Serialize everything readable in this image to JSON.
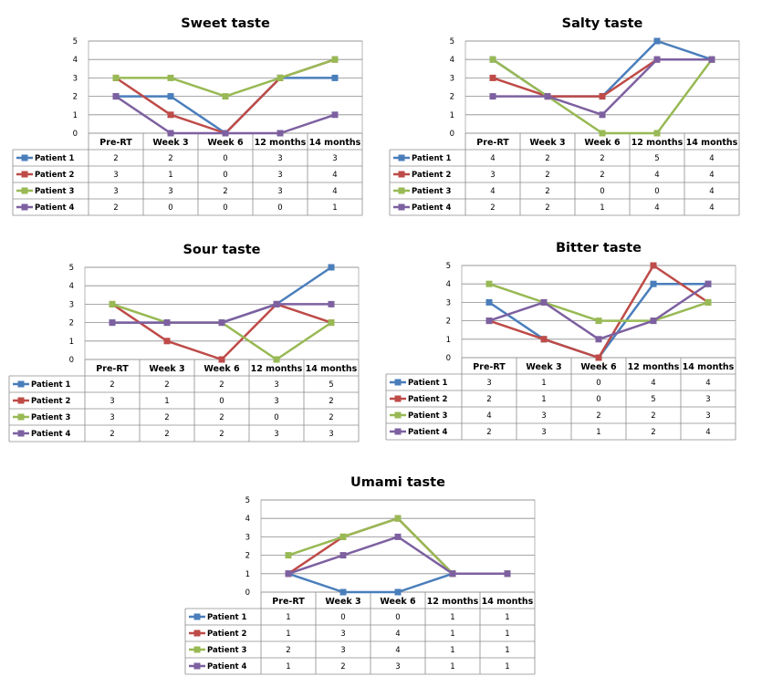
{
  "colors": {
    "Patient 1": "#4a7ebb",
    "Patient 2": "#be4b48",
    "Patient 3": "#98b954",
    "Patient 4": "#7d60a0"
  },
  "chart_data": [
    {
      "type": "line",
      "title": "Sweet taste",
      "categories": [
        "Pre-RT",
        "Week 3",
        "Week 6",
        "12 months",
        "14 months"
      ],
      "ylim": [
        0,
        5
      ],
      "yticks": [
        "0",
        "1",
        "2",
        "3",
        "4",
        "5"
      ],
      "grid": true,
      "legend": "data-table",
      "series": [
        {
          "name": "Patient 1",
          "values": [
            2,
            2,
            0,
            3,
            3
          ]
        },
        {
          "name": "Patient 2",
          "values": [
            3,
            1,
            0,
            3,
            4
          ]
        },
        {
          "name": "Patient 3",
          "values": [
            3,
            3,
            2,
            3,
            4
          ]
        },
        {
          "name": "Patient 4",
          "values": [
            2,
            0,
            0,
            0,
            1
          ]
        }
      ]
    },
    {
      "type": "line",
      "title": "Salty taste",
      "categories": [
        "Pre-RT",
        "Week 3",
        "Week 6",
        "12 months",
        "14 months"
      ],
      "ylim": [
        0,
        5
      ],
      "yticks": [
        "0",
        "1",
        "2",
        "3",
        "4",
        "5"
      ],
      "grid": true,
      "legend": "data-table",
      "series": [
        {
          "name": "Patient 1",
          "values": [
            4,
            2,
            2,
            5,
            4
          ]
        },
        {
          "name": "Patient 2",
          "values": [
            3,
            2,
            2,
            4,
            4
          ]
        },
        {
          "name": "Patient 3",
          "values": [
            4,
            2,
            0,
            0,
            4
          ]
        },
        {
          "name": "Patient 4",
          "values": [
            2,
            2,
            1,
            4,
            4
          ]
        }
      ]
    },
    {
      "type": "line",
      "title": "Sour taste",
      "categories": [
        "Pre-RT",
        "Week 3",
        "Week 6",
        "12 months",
        "14 months"
      ],
      "ylim": [
        0,
        5
      ],
      "yticks": [
        "0",
        "1",
        "2",
        "3",
        "4",
        "5"
      ],
      "grid": true,
      "legend": "data-table",
      "series": [
        {
          "name": "Patient 1",
          "values": [
            2,
            2,
            2,
            3,
            5
          ]
        },
        {
          "name": "Patient 2",
          "values": [
            3,
            1,
            0,
            3,
            2
          ]
        },
        {
          "name": "Patient 3",
          "values": [
            3,
            2,
            2,
            0,
            2
          ]
        },
        {
          "name": "Patient 4",
          "values": [
            2,
            2,
            2,
            3,
            3
          ]
        }
      ]
    },
    {
      "type": "line",
      "title": "Bitter taste",
      "categories": [
        "Pre-RT",
        "Week 3",
        "Week 6",
        "12 months",
        "14 months"
      ],
      "ylim": [
        0,
        5
      ],
      "yticks": [
        "0",
        "1",
        "2",
        "3",
        "4",
        "5"
      ],
      "grid": true,
      "legend": "data-table",
      "series": [
        {
          "name": "Patient 1",
          "values": [
            3,
            1,
            0,
            4,
            4
          ]
        },
        {
          "name": "Patient 2",
          "values": [
            2,
            1,
            0,
            5,
            3
          ]
        },
        {
          "name": "Patient 3",
          "values": [
            4,
            3,
            2,
            2,
            3
          ]
        },
        {
          "name": "Patient 4",
          "values": [
            2,
            3,
            1,
            2,
            4
          ]
        }
      ]
    },
    {
      "type": "line",
      "title": "Umami taste",
      "categories": [
        "Pre-RT",
        "Week 3",
        "Week 6",
        "12 months",
        "14 months"
      ],
      "ylim": [
        0,
        5
      ],
      "yticks": [
        "0",
        "1",
        "2",
        "3",
        "4",
        "5"
      ],
      "grid": true,
      "legend": "data-table",
      "series": [
        {
          "name": "Patient 1",
          "values": [
            1,
            0,
            0,
            1,
            1
          ]
        },
        {
          "name": "Patient 2",
          "values": [
            1,
            3,
            4,
            1,
            1
          ]
        },
        {
          "name": "Patient 3",
          "values": [
            2,
            3,
            4,
            1,
            1
          ]
        },
        {
          "name": "Patient 4",
          "values": [
            1,
            2,
            3,
            1,
            1
          ]
        }
      ]
    }
  ]
}
